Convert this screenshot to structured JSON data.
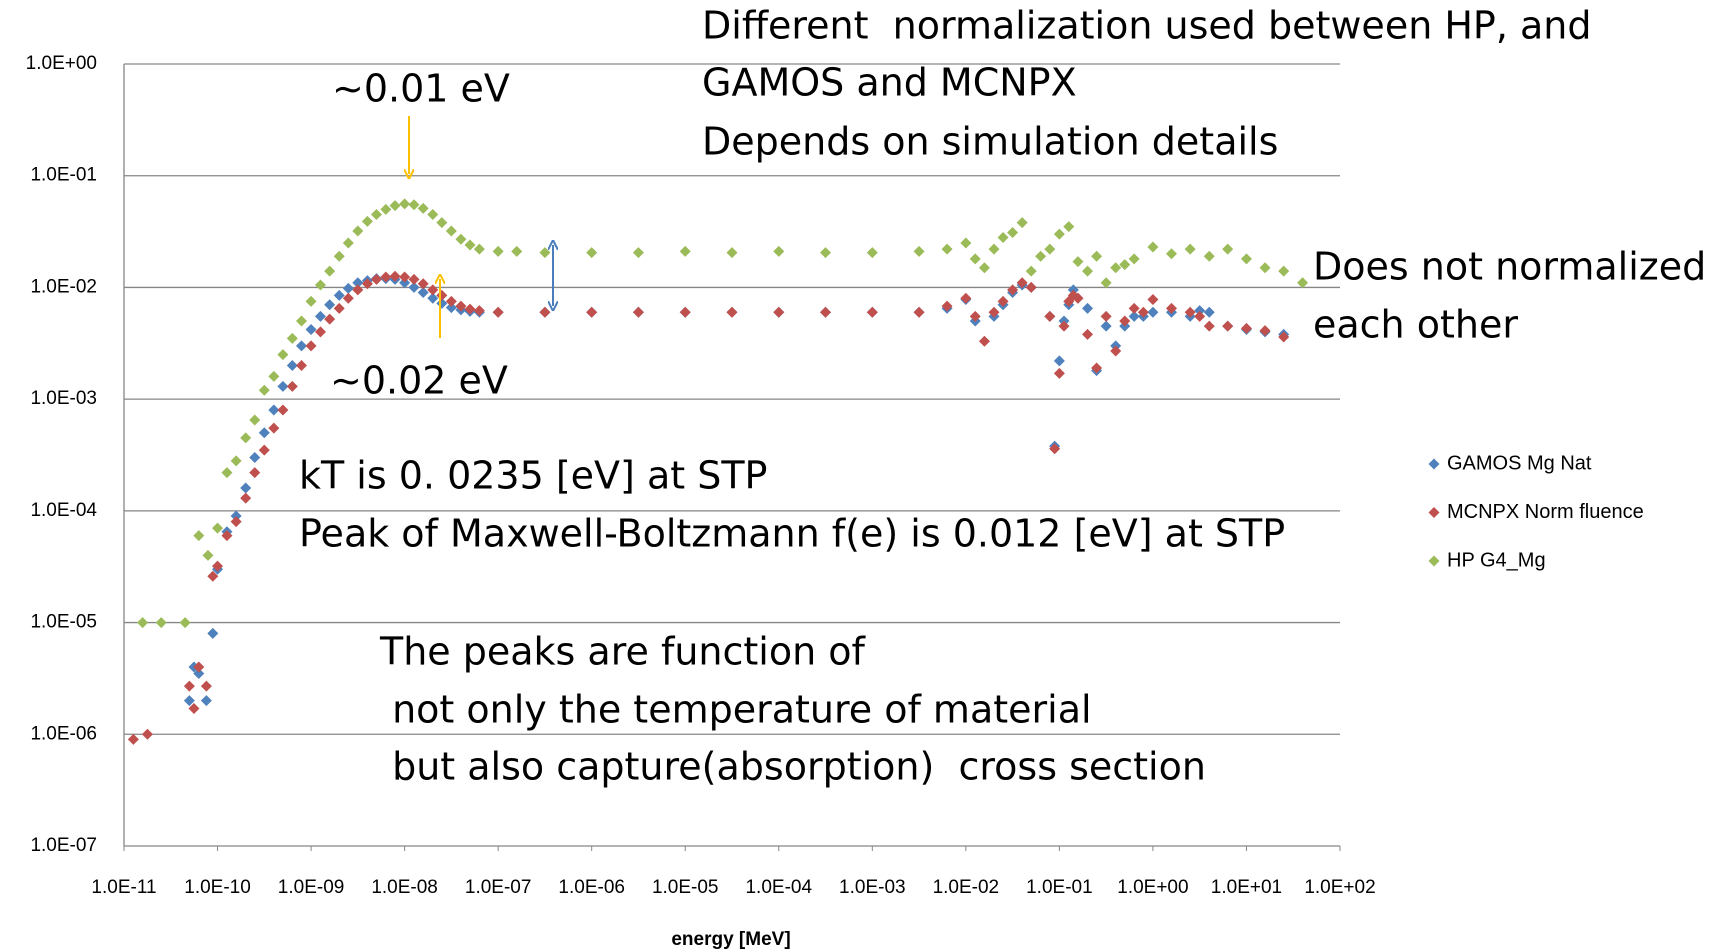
{
  "chart_data": {
    "type": "scatter",
    "xscale": "log",
    "yscale": "log",
    "grid": true,
    "legend": "right",
    "x_label": "energy [MeV]",
    "xlim": [
      1e-11,
      100
    ],
    "xticks": [
      {
        "value": 1e-11,
        "label": "1.0E-11"
      },
      {
        "value": 1e-10,
        "label": "1.0E-10"
      },
      {
        "value": 1e-09,
        "label": "1.0E-09"
      },
      {
        "value": 1e-08,
        "label": "1.0E-08"
      },
      {
        "value": 1e-07,
        "label": "1.0E-07"
      },
      {
        "value": 1e-06,
        "label": "1.0E-06"
      },
      {
        "value": 1e-05,
        "label": "1.0E-05"
      },
      {
        "value": 0.0001,
        "label": "1.0E-04"
      },
      {
        "value": 0.001,
        "label": "1.0E-03"
      },
      {
        "value": 0.01,
        "label": "1.0E-02"
      },
      {
        "value": 0.1,
        "label": "1.0E-01"
      },
      {
        "value": 1,
        "label": "1.0E+00"
      },
      {
        "value": 10,
        "label": "1.0E+01"
      },
      {
        "value": 100,
        "label": "1.0E+02"
      }
    ],
    "ylim": [
      1e-07,
      1
    ],
    "yticks": [
      {
        "value": 1e-07,
        "label": "1.0E-07"
      },
      {
        "value": 1e-06,
        "label": "1.0E-06"
      },
      {
        "value": 1e-05,
        "label": "1.0E-05"
      },
      {
        "value": 0.0001,
        "label": "1.0E-04"
      },
      {
        "value": 0.001,
        "label": "1.0E-03"
      },
      {
        "value": 0.01,
        "label": "1.0E-02"
      },
      {
        "value": 0.1,
        "label": "1.0E-01"
      },
      {
        "value": 1,
        "label": "1.0E+00"
      }
    ],
    "annotations": [
      "Different  normalization used between HP, and",
      "GAMOS and MCNPX",
      "Depends on simulation details",
      "~0.01 eV",
      "Does not normalized",
      "each other",
      "~0.02 eV",
      "kT is 0. 0235 [eV] at STP",
      "Peak of Maxwell-Boltzmann f(e) is 0.012 [eV] at STP",
      "The peaks are function of",
      " not only the temperature of material",
      " but also capture(absorption)  cross section"
    ],
    "series": [
      {
        "name": "GAMOS Mg Nat",
        "color": "#4f81bd",
        "x": [
          1.26e-11,
          1.78e-11,
          5e-11,
          5.6e-11,
          6.3e-11,
          7.6e-11,
          8.9e-11,
          1e-10,
          1.26e-10,
          1.58e-10,
          2e-10,
          2.5e-10,
          3.16e-10,
          4e-10,
          5e-10,
          6.3e-10,
          7.9e-10,
          1e-09,
          1.26e-09,
          1.58e-09,
          2e-09,
          2.5e-09,
          3.16e-09,
          4e-09,
          5e-09,
          6.3e-09,
          7.9e-09,
          1e-08,
          1.26e-08,
          1.58e-08,
          2e-08,
          2.5e-08,
          3.16e-08,
          4e-08,
          5e-08,
          6.3e-08,
          1e-07,
          3.16e-07,
          1e-06,
          3.16e-06,
          1e-05,
          3.16e-05,
          0.0001,
          0.000316,
          0.001,
          0.00316,
          0.0063,
          0.01,
          0.0126,
          0.0158,
          0.02,
          0.025,
          0.0316,
          0.04,
          0.05,
          0.079,
          0.089,
          0.1,
          0.112,
          0.126,
          0.141,
          0.158,
          0.2,
          0.25,
          0.316,
          0.4,
          0.5,
          0.63,
          0.79,
          1,
          1.58,
          2.5,
          3.16,
          4,
          6.3,
          10,
          15.8,
          25
        ],
        "values": [
          null,
          null,
          2e-06,
          4e-06,
          3.5e-06,
          2e-06,
          8e-06,
          3e-05,
          6.5e-05,
          9e-05,
          0.00016,
          0.0003,
          0.0005,
          0.0008,
          0.0013,
          0.002,
          0.003,
          0.0042,
          0.0055,
          0.007,
          0.0085,
          0.0098,
          0.011,
          0.0115,
          0.012,
          0.012,
          0.0118,
          0.011,
          0.01,
          0.009,
          0.008,
          0.0072,
          0.0066,
          0.0063,
          0.0061,
          0.006,
          0.006,
          0.006,
          0.006,
          0.006,
          0.006,
          0.006,
          0.006,
          0.006,
          0.006,
          0.006,
          0.0065,
          0.0078,
          0.005,
          null,
          0.0055,
          0.007,
          0.009,
          0.0105,
          0.01,
          0.0055,
          0.00038,
          0.0022,
          0.005,
          0.007,
          0.0095,
          0.008,
          0.0065,
          0.0018,
          0.0045,
          0.003,
          0.0045,
          0.0055,
          0.0055,
          0.006,
          0.006,
          0.0055,
          0.0062,
          0.006,
          0.0045,
          0.0042,
          0.004,
          0.0038
        ]
      },
      {
        "name": "MCNPX Norm fluence",
        "color": "#c0504d",
        "x": [
          1.26e-11,
          1.78e-11,
          5e-11,
          5.6e-11,
          6.3e-11,
          7.6e-11,
          8.9e-11,
          1e-10,
          1.26e-10,
          1.58e-10,
          2e-10,
          2.5e-10,
          3.16e-10,
          4e-10,
          5e-10,
          6.3e-10,
          7.9e-10,
          1e-09,
          1.26e-09,
          1.58e-09,
          2e-09,
          2.5e-09,
          3.16e-09,
          4e-09,
          5e-09,
          6.3e-09,
          7.9e-09,
          1e-08,
          1.26e-08,
          1.58e-08,
          2e-08,
          2.5e-08,
          3.16e-08,
          4e-08,
          5e-08,
          6.3e-08,
          1e-07,
          3.16e-07,
          1e-06,
          3.16e-06,
          1e-05,
          3.16e-05,
          0.0001,
          0.000316,
          0.001,
          0.00316,
          0.0063,
          0.01,
          0.0126,
          0.0158,
          0.02,
          0.025,
          0.0316,
          0.04,
          0.05,
          0.079,
          0.089,
          0.1,
          0.112,
          0.126,
          0.141,
          0.158,
          0.2,
          0.25,
          0.316,
          0.4,
          0.5,
          0.63,
          0.79,
          1,
          1.58,
          2.5,
          3.16,
          4,
          6.3,
          10,
          15.8,
          25
        ],
        "values": [
          9e-07,
          1e-06,
          2.7e-06,
          1.7e-06,
          4e-06,
          2.7e-06,
          2.6e-05,
          3.2e-05,
          6e-05,
          8e-05,
          0.00013,
          0.00022,
          0.00035,
          0.00055,
          0.0008,
          0.0013,
          0.002,
          0.003,
          0.004,
          0.0052,
          0.0065,
          0.008,
          0.0095,
          0.0108,
          0.0118,
          0.0124,
          0.0126,
          0.0124,
          0.0118,
          0.0108,
          0.0095,
          0.0085,
          0.0075,
          0.0068,
          0.0064,
          0.0062,
          0.006,
          0.006,
          0.006,
          0.006,
          0.006,
          0.006,
          0.006,
          0.006,
          0.006,
          0.006,
          0.0068,
          0.008,
          0.0055,
          0.0033,
          0.006,
          0.0075,
          0.0095,
          0.011,
          0.01,
          0.0055,
          0.00036,
          0.0017,
          0.0045,
          0.0075,
          0.0085,
          0.008,
          0.0038,
          0.0019,
          0.0055,
          0.0027,
          0.005,
          0.0065,
          0.006,
          0.0078,
          0.0065,
          0.006,
          0.0055,
          0.0045,
          0.0045,
          0.0043,
          0.0041,
          0.0036
        ]
      },
      {
        "name": "HP G4_Mg",
        "color": "#9bbb59",
        "x": [
          1.58e-11,
          2.5e-11,
          4.5e-11,
          6.3e-11,
          7.9e-11,
          1e-10,
          1.26e-10,
          1.58e-10,
          2e-10,
          2.5e-10,
          3.16e-10,
          4e-10,
          5e-10,
          6.3e-10,
          7.9e-10,
          1e-09,
          1.26e-09,
          1.58e-09,
          2e-09,
          2.5e-09,
          3.16e-09,
          4e-09,
          5e-09,
          6.3e-09,
          7.9e-09,
          1e-08,
          1.26e-08,
          1.58e-08,
          2e-08,
          2.5e-08,
          3.16e-08,
          4e-08,
          5e-08,
          6.3e-08,
          1e-07,
          1.58e-07,
          3.16e-07,
          1e-06,
          3.16e-06,
          1e-05,
          3.16e-05,
          0.0001,
          0.000316,
          0.001,
          0.00316,
          0.0063,
          0.01,
          0.0126,
          0.0158,
          0.02,
          0.025,
          0.0316,
          0.04,
          0.05,
          0.063,
          0.079,
          0.1,
          0.126,
          0.158,
          0.2,
          0.25,
          0.316,
          0.4,
          0.5,
          0.63,
          1,
          1.58,
          2.5,
          4,
          6.3,
          10,
          15.8,
          25,
          39.8
        ],
        "values": [
          1e-05,
          1e-05,
          1e-05,
          6e-05,
          4e-05,
          7e-05,
          0.00022,
          0.00028,
          0.00045,
          0.00065,
          0.0012,
          0.0016,
          0.0025,
          0.0035,
          0.005,
          0.0075,
          0.0105,
          0.014,
          0.019,
          0.025,
          0.032,
          0.039,
          0.045,
          0.05,
          0.054,
          0.056,
          0.055,
          0.051,
          0.045,
          0.038,
          0.032,
          0.027,
          0.024,
          0.022,
          0.021,
          0.021,
          0.0205,
          0.0205,
          0.0205,
          0.021,
          0.0205,
          0.021,
          0.0205,
          0.0205,
          0.021,
          0.022,
          0.025,
          0.018,
          0.015,
          0.022,
          0.028,
          0.031,
          0.038,
          0.014,
          0.019,
          0.022,
          0.03,
          0.035,
          0.017,
          0.014,
          0.019,
          0.011,
          0.015,
          0.016,
          0.018,
          0.023,
          0.02,
          0.022,
          0.019,
          0.022,
          0.018,
          0.015,
          0.014,
          0.011
        ]
      }
    ]
  }
}
